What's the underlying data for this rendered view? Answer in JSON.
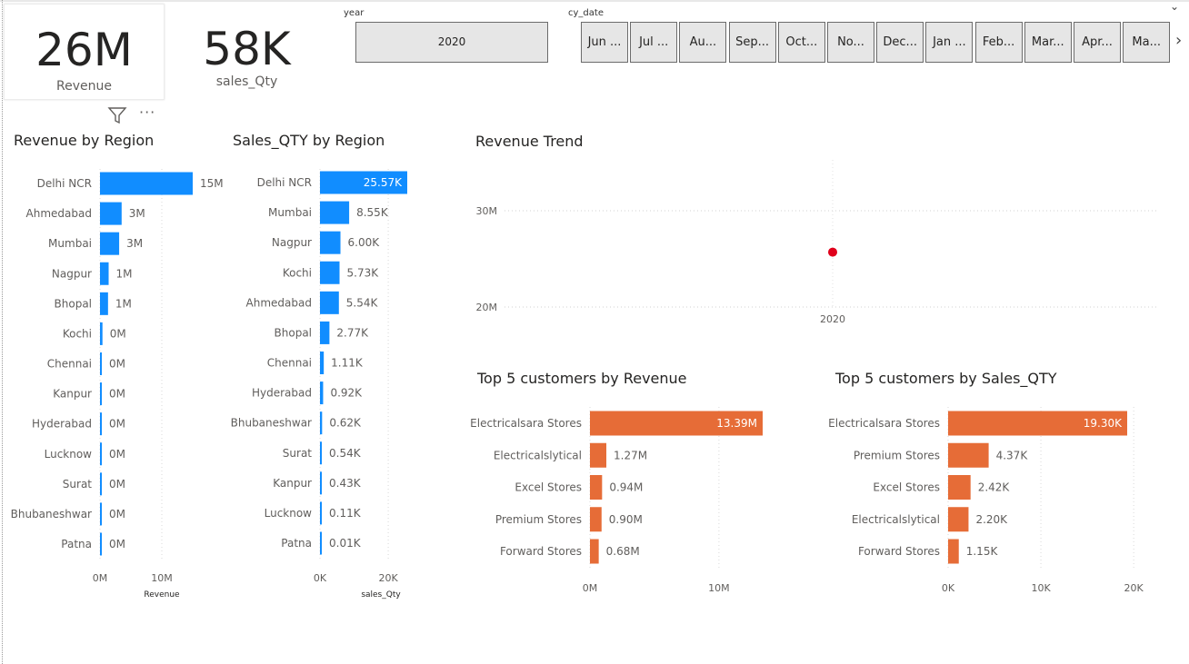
{
  "kpis": {
    "revenue": {
      "value": "26M",
      "label": "Revenue"
    },
    "sales_qty": {
      "value": "58K",
      "label": "sales_Qty"
    }
  },
  "slicers": {
    "year": {
      "title": "year",
      "selected": "2020"
    },
    "cy_date": {
      "title": "cy_date",
      "items": [
        "Jun ...",
        "Jul ...",
        "Au...",
        "Sep...",
        "Oct...",
        "No...",
        "Dec...",
        "Jan ...",
        "Feb...",
        "Mar...",
        "Apr...",
        "Ma..."
      ]
    }
  },
  "colors": {
    "blue": "#118DFF",
    "orange": "#E66C37",
    "red_point": "#E0001B",
    "grid": "#d0d0d0"
  },
  "chart_data": [
    {
      "id": "revenue_by_region",
      "type": "bar",
      "orientation": "horizontal",
      "title": "Revenue by Region",
      "xlabel": "Revenue",
      "categories": [
        "Delhi NCR",
        "Ahmedabad",
        "Mumbai",
        "Nagpur",
        "Bhopal",
        "Kochi",
        "Chennai",
        "Kanpur",
        "Hyderabad",
        "Lucknow",
        "Surat",
        "Bhubaneshwar",
        "Patna"
      ],
      "values": [
        15,
        3,
        3,
        1,
        1,
        0,
        0,
        0,
        0,
        0,
        0,
        0,
        0
      ],
      "bar_values": [
        15.0,
        3.5,
        3.1,
        1.4,
        1.3,
        0.4,
        0.2,
        0.2,
        0.2,
        0.1,
        0.1,
        0.1,
        0.1
      ],
      "data_labels": [
        "15M",
        "3M",
        "3M",
        "1M",
        "1M",
        "0M",
        "0M",
        "0M",
        "0M",
        "0M",
        "0M",
        "0M",
        "0M"
      ],
      "ticks": [
        0,
        10
      ],
      "tick_labels": [
        "0M",
        "10M"
      ],
      "xlim": [
        0,
        15
      ],
      "color": "#118DFF"
    },
    {
      "id": "sales_qty_by_region",
      "type": "bar",
      "orientation": "horizontal",
      "title": "Sales_QTY by Region",
      "xlabel": "sales_Qty",
      "categories": [
        "Delhi NCR",
        "Mumbai",
        "Nagpur",
        "Kochi",
        "Ahmedabad",
        "Bhopal",
        "Chennai",
        "Hyderabad",
        "Bhubaneshwar",
        "Surat",
        "Kanpur",
        "Lucknow",
        "Patna"
      ],
      "values": [
        25570,
        8550,
        6000,
        5730,
        5540,
        2770,
        1110,
        920,
        620,
        540,
        430,
        110,
        10
      ],
      "data_labels": [
        "25.57K",
        "8.55K",
        "6.00K",
        "5.73K",
        "5.54K",
        "2.77K",
        "1.11K",
        "0.92K",
        "0.62K",
        "0.54K",
        "0.43K",
        "0.11K",
        "0.01K"
      ],
      "ticks": [
        0,
        20000
      ],
      "tick_labels": [
        "0K",
        "20K"
      ],
      "xlim": [
        0,
        25570
      ],
      "color": "#118DFF"
    },
    {
      "id": "revenue_trend",
      "type": "scatter",
      "title": "Revenue Trend",
      "x": [
        "2020"
      ],
      "y": [
        25.7
      ],
      "ylim": [
        20,
        30
      ],
      "y_ticks": [
        20,
        30
      ],
      "y_tick_labels": [
        "20M",
        "30M"
      ],
      "grid": true,
      "color": "#E0001B"
    },
    {
      "id": "top5_customers_revenue",
      "type": "bar",
      "orientation": "horizontal",
      "title": "Top 5 customers by Revenue",
      "categories": [
        "Electricalsara Stores",
        "Electricalslytical",
        "Excel Stores",
        "Premium Stores",
        "Forward Stores"
      ],
      "values": [
        13.39,
        1.27,
        0.94,
        0.9,
        0.68
      ],
      "data_labels": [
        "13.39M",
        "1.27M",
        "0.94M",
        "0.90M",
        "0.68M"
      ],
      "ticks": [
        0,
        10
      ],
      "tick_labels": [
        "0M",
        "10M"
      ],
      "xlim": [
        0,
        13.39
      ],
      "color": "#E66C37"
    },
    {
      "id": "top5_customers_qty",
      "type": "bar",
      "orientation": "horizontal",
      "title": "Top 5 customers by Sales_QTY",
      "categories": [
        "Electricalsara Stores",
        "Premium Stores",
        "Excel Stores",
        "Electricalslytical",
        "Forward Stores"
      ],
      "values": [
        19300,
        4370,
        2420,
        2200,
        1150
      ],
      "data_labels": [
        "19.30K",
        "4.37K",
        "2.42K",
        "2.20K",
        "1.15K"
      ],
      "ticks": [
        0,
        10000,
        20000
      ],
      "tick_labels": [
        "0K",
        "10K",
        "20K"
      ],
      "xlim": [
        0,
        19300
      ],
      "color": "#E66C37"
    }
  ]
}
